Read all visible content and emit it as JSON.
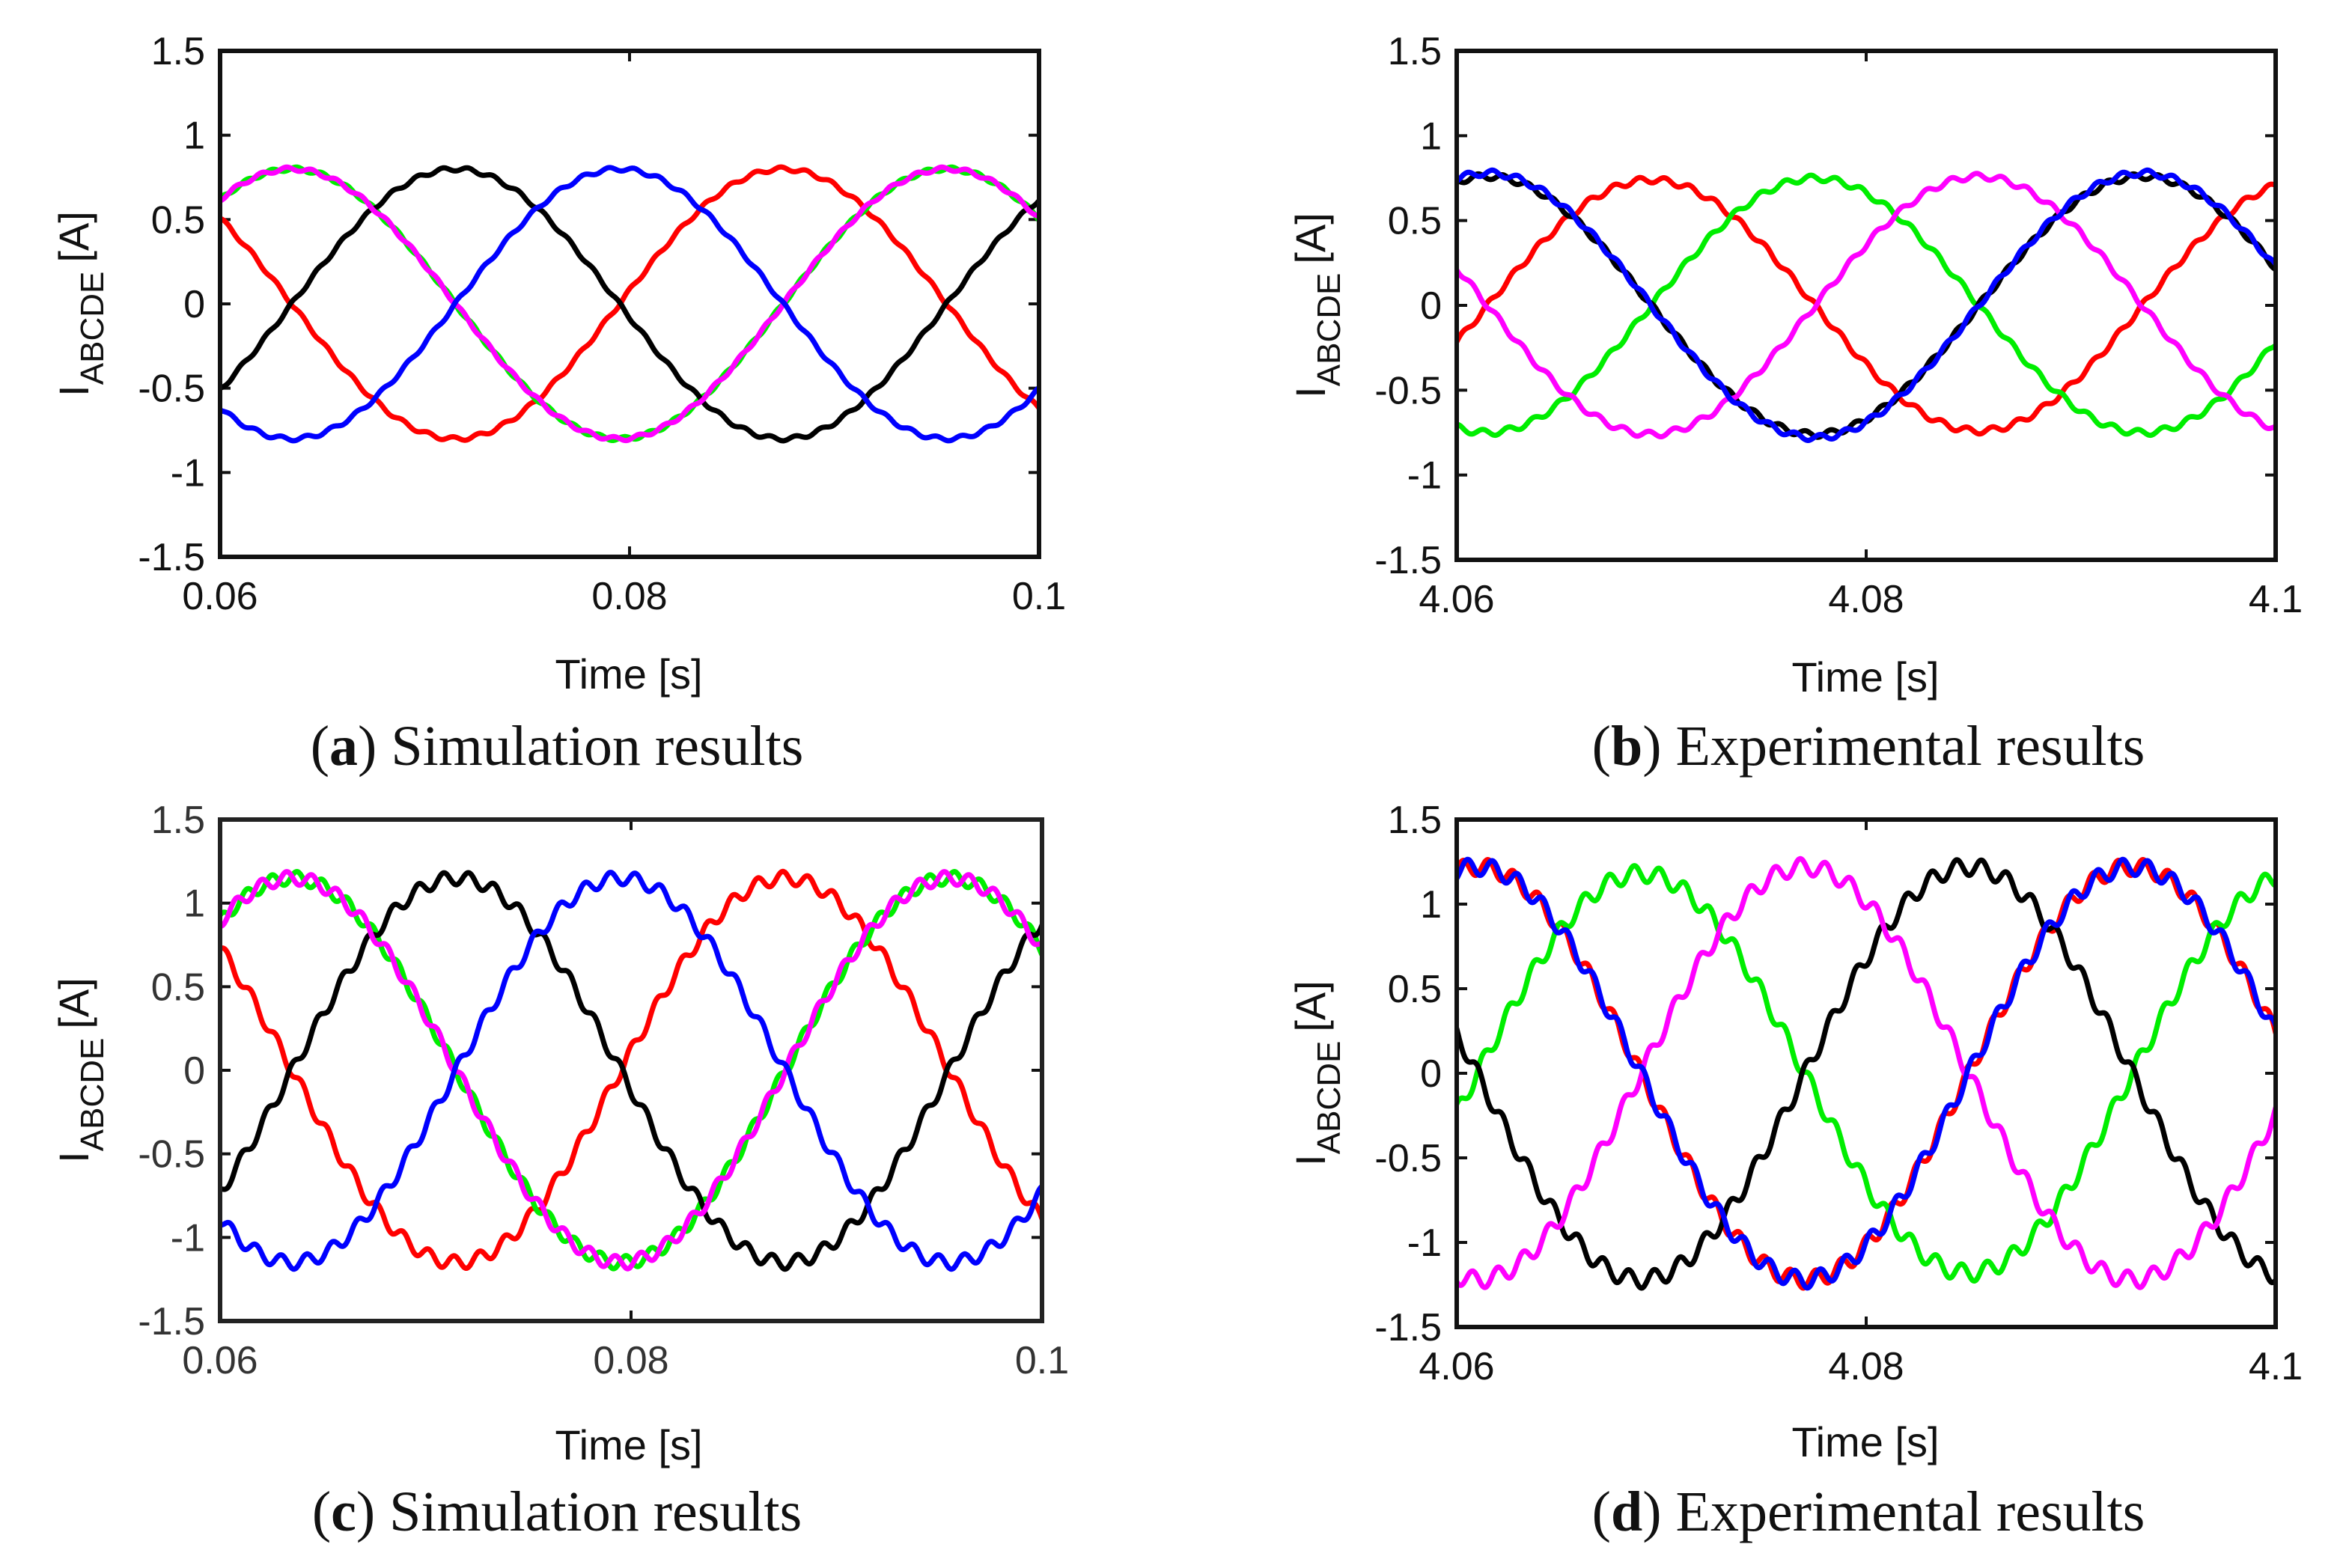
{
  "series_colors": {
    "A": "#ff0000",
    "B": "#00ee00",
    "C": "#000000",
    "D": "#ff00ff",
    "E": "#0000ff"
  },
  "chart_data": [
    {
      "type": "line",
      "caption_letter": "a",
      "caption_text": "Simulation results",
      "xlabel": "Time [s]",
      "ylabel_main": "I",
      "ylabel_sub": "ABCDE",
      "ylabel_unit": "[A]",
      "xlim": [
        0.06,
        0.1
      ],
      "ylim": [
        -1.5,
        1.5
      ],
      "xticks": [
        0.06,
        0.08,
        0.1
      ],
      "xtick_labels": [
        "0.06",
        "0.08",
        "0.1"
      ],
      "yticks": [
        1.5,
        1,
        0.5,
        0,
        -0.5,
        -1,
        -1.5
      ],
      "ytick_labels": [
        "1.5",
        "1",
        "0.5",
        "0",
        "-0.5",
        "-1",
        "-1.5"
      ],
      "amplitude": 0.8,
      "ripple": 0.012,
      "series": [
        {
          "name": "Red",
          "color": "#ff0000",
          "peak_time": 0.0875,
          "amplitude": 0.8
        },
        {
          "name": "Green",
          "color": "#00ee00",
          "peak_time": 0.0955,
          "amplitude": 0.8
        },
        {
          "name": "Black",
          "color": "#000000",
          "peak_time": 0.0715,
          "amplitude": 0.8
        },
        {
          "name": "Magenta",
          "color": "#ff00ff",
          "peak_time": 0.0635,
          "amplitude": 0.8
        },
        {
          "name": "Blue",
          "color": "#0000ff",
          "peak_time": 0.0795,
          "amplitude": 0.8
        }
      ]
    },
    {
      "type": "line",
      "caption_letter": "b",
      "caption_text": "Experimental results",
      "xlabel": "Time [s]",
      "ylabel_main": "I",
      "ylabel_sub": "ABCDE",
      "ylabel_unit": "[A]",
      "xlim": [
        4.06,
        4.1
      ],
      "ylim": [
        -1.5,
        1.5
      ],
      "xticks": [
        4.06,
        4.08,
        4.1
      ],
      "xtick_labels": [
        "4.06",
        "4.08",
        "4.1"
      ],
      "yticks": [
        1.5,
        1,
        0.5,
        0,
        -0.5,
        -1,
        -1.5
      ],
      "ytick_labels": [
        "1.5",
        "1",
        "0.5",
        "0",
        "-0.5",
        "-1",
        "-1.5"
      ],
      "amplitude": 0.76,
      "ripple": 0.018,
      "series": [
        {
          "name": "Red",
          "color": "#ff0000",
          "peak_time": 4.0695,
          "amplitude": 0.74
        },
        {
          "name": "Green",
          "color": "#00ee00",
          "peak_time": 4.0775,
          "amplitude": 0.75
        },
        {
          "name": "Black",
          "color": "#000000",
          "peak_time": 4.0935,
          "amplitude": 0.76
        },
        {
          "name": "Magenta",
          "color": "#ff00ff",
          "peak_time": 4.0855,
          "amplitude": 0.76
        },
        {
          "name": "Blue",
          "color": "#0000ff",
          "peak_time": 4.0615,
          "amplitude": 0.78
        }
      ]
    },
    {
      "type": "line",
      "caption_letter": "c",
      "caption_text": "Simulation results",
      "xlabel": "Time [s]",
      "ylabel_main": "I",
      "ylabel_sub": "ABCDE",
      "ylabel_unit": "[A]",
      "xlim": [
        0.06,
        0.1
      ],
      "ylim": [
        -1.5,
        1.5
      ],
      "xticks": [
        0.06,
        0.08,
        0.1
      ],
      "xtick_labels": [
        "0.06",
        "0.08",
        "0.1"
      ],
      "yticks": [
        1.5,
        1,
        0.5,
        0,
        -0.5,
        -1,
        -1.5
      ],
      "ytick_labels": [
        "1.5",
        "1",
        "0.5",
        "0",
        "-0.5",
        "-1",
        "-1.5"
      ],
      "amplitude": 1.15,
      "ripple": 0.04,
      "series": [
        {
          "name": "Red",
          "color": "#ff0000",
          "peak_time": 0.0875,
          "amplitude": 1.15
        },
        {
          "name": "Green",
          "color": "#00ee00",
          "peak_time": 0.0955,
          "amplitude": 1.15
        },
        {
          "name": "Black",
          "color": "#000000",
          "peak_time": 0.0715,
          "amplitude": 1.15
        },
        {
          "name": "Magenta",
          "color": "#ff00ff",
          "peak_time": 0.0635,
          "amplitude": 1.15
        },
        {
          "name": "Blue",
          "color": "#0000ff",
          "peak_time": 0.0795,
          "amplitude": 1.15
        }
      ]
    },
    {
      "type": "line",
      "caption_letter": "d",
      "caption_text": "Experimental results",
      "xlabel": "Time [s]",
      "ylabel_main": "I",
      "ylabel_sub": "ABCDE",
      "ylabel_unit": "[A]",
      "xlim": [
        4.06,
        4.1
      ],
      "ylim": [
        -1.5,
        1.5
      ],
      "xticks": [
        4.06,
        4.08,
        4.1
      ],
      "xtick_labels": [
        "4.06",
        "4.08",
        "4.1"
      ],
      "yticks": [
        1.5,
        1,
        0.5,
        0,
        -0.5,
        -1,
        -1.5
      ],
      "ytick_labels": [
        "1.5",
        "1",
        "0.5",
        "0",
        "-0.5",
        "-1",
        "-1.5"
      ],
      "amplitude": 1.22,
      "ripple": 0.05,
      "series": [
        {
          "name": "Red",
          "color": "#ff0000",
          "peak_time": 4.061,
          "amplitude": 1.22
        },
        {
          "name": "Green",
          "color": "#00ee00",
          "peak_time": 4.069,
          "amplitude": 1.18
        },
        {
          "name": "Black",
          "color": "#000000",
          "peak_time": 4.085,
          "amplitude": 1.22
        },
        {
          "name": "Magenta",
          "color": "#ff00ff",
          "peak_time": 4.077,
          "amplitude": 1.22
        },
        {
          "name": "Blue",
          "color": "#0000ff",
          "peak_time": 4.093,
          "amplitude": 1.22
        }
      ]
    }
  ]
}
